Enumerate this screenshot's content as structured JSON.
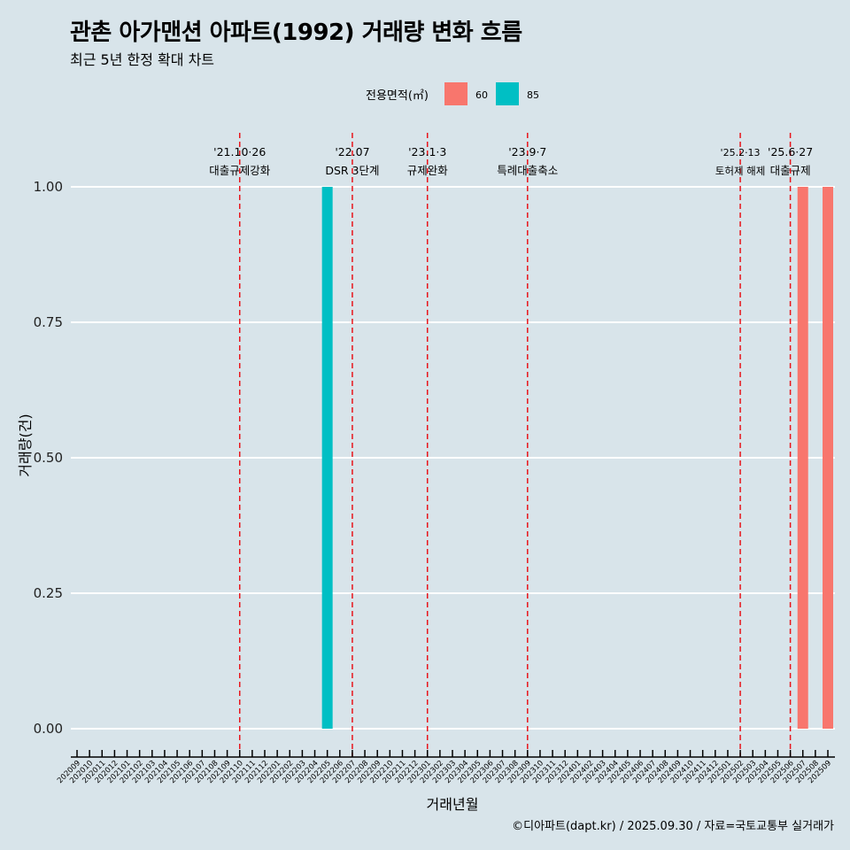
{
  "chart_data": {
    "type": "bar",
    "title": "관촌 아가맨션 아파트(1992) 거래량 변화 흐름",
    "subtitle": "최근 5년 한정 확대 차트",
    "xlabel": "거래년월",
    "ylabel": "거래량(건)",
    "ylim": [
      0,
      1
    ],
    "yticks": [
      "0.00",
      "0.25",
      "0.50",
      "0.75",
      "1.00"
    ],
    "legend": {
      "title": "전용면적(㎡)",
      "placement": "top",
      "entries": [
        {
          "name": "60",
          "color": "#F8766D"
        },
        {
          "name": "85",
          "color": "#00BFC4"
        }
      ]
    },
    "categories": [
      "202009",
      "202010",
      "202011",
      "202012",
      "202101",
      "202102",
      "202103",
      "202104",
      "202105",
      "202106",
      "202107",
      "202108",
      "202109",
      "202110",
      "202111",
      "202112",
      "202201",
      "202202",
      "202203",
      "202204",
      "202205",
      "202206",
      "202207",
      "202208",
      "202209",
      "202210",
      "202211",
      "202212",
      "202301",
      "202302",
      "202303",
      "202304",
      "202305",
      "202306",
      "202307",
      "202308",
      "202309",
      "202310",
      "202311",
      "202312",
      "202401",
      "202402",
      "202403",
      "202404",
      "202405",
      "202406",
      "202407",
      "202408",
      "202409",
      "202410",
      "202411",
      "202412",
      "202501",
      "202502",
      "202503",
      "202504",
      "202505",
      "202506",
      "202507",
      "202508",
      "202509"
    ],
    "series": [
      {
        "name": "60",
        "points": [
          {
            "x": "202507",
            "y": 1
          },
          {
            "x": "202509",
            "y": 1
          }
        ]
      },
      {
        "name": "85",
        "points": [
          {
            "x": "202205",
            "y": 1
          }
        ]
      }
    ],
    "annotations": [
      {
        "x": "202110",
        "date": "'21.10·26",
        "label": "대출규제강화"
      },
      {
        "x": "202207",
        "date": "'22.07",
        "label": "DSR 3단계"
      },
      {
        "x": "202301",
        "date": "'23.1·3",
        "label": "규제완화"
      },
      {
        "x": "202309",
        "date": "'23.9·7",
        "label": "특례대출축소"
      },
      {
        "x": "202502",
        "date": "'25.2·13",
        "label": "토허제 해제"
      },
      {
        "x": "202506",
        "date": "'25.6·27",
        "label": "대출규제"
      }
    ],
    "caption": "©디아파트(dapt.kr) / 2025.09.30 / 자료=국토교통부 실거래가"
  }
}
